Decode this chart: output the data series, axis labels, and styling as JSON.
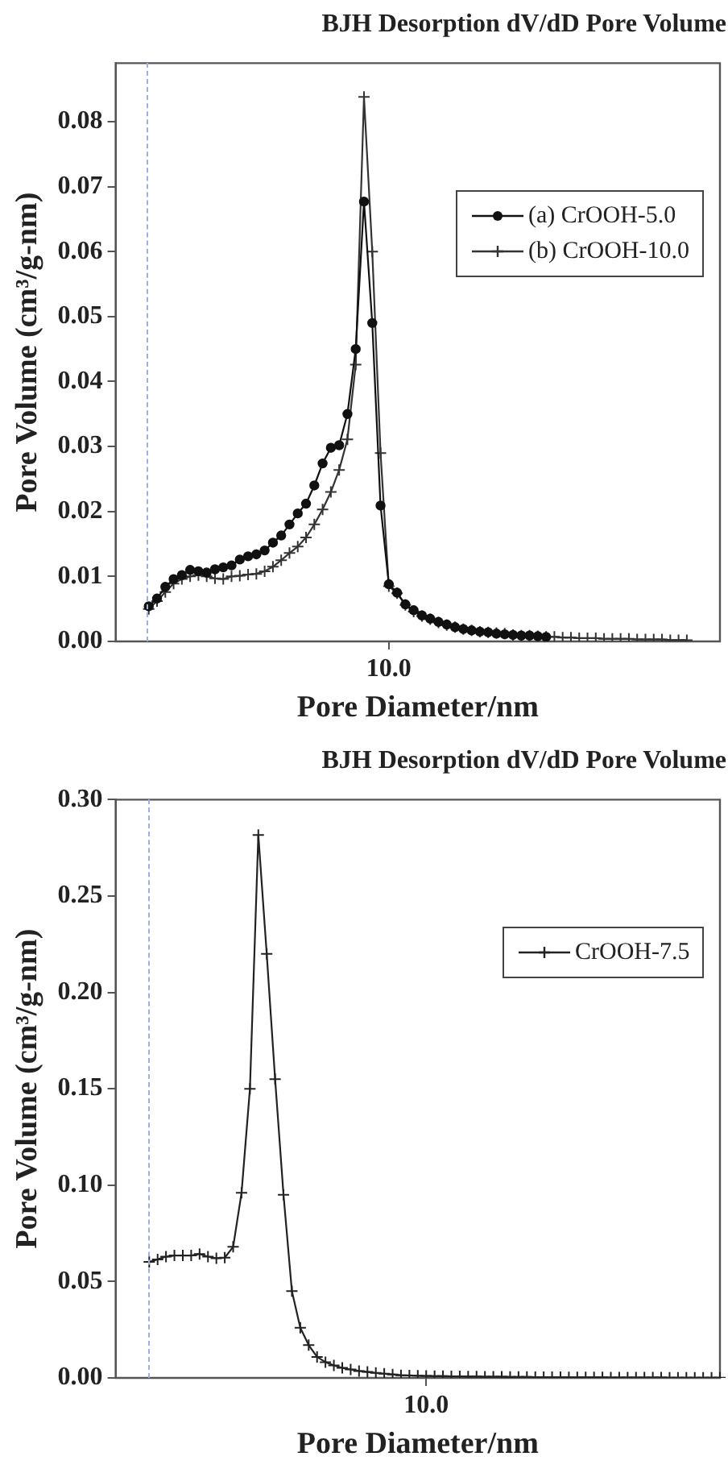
{
  "chart_data": [
    {
      "type": "line",
      "title": "BJH Desorption dV/dD Pore Volume",
      "xlabel": "Pore Diameter/nm",
      "ylabel": "Pore Volume (cm³/g-nm)",
      "categories": [
        null,
        null,
        null,
        null,
        null,
        null,
        null,
        null,
        null,
        null,
        null,
        null,
        null,
        null,
        null,
        null,
        null,
        null,
        null,
        null,
        null,
        null,
        null,
        null,
        null,
        null,
        null,
        null,
        null,
        null,
        null,
        null,
        null,
        "10.0",
        null,
        null,
        null,
        null,
        null,
        null,
        null,
        null,
        null,
        null,
        null,
        null,
        null,
        null,
        null,
        null,
        null,
        null,
        null,
        null,
        null,
        null,
        null,
        null,
        null,
        null,
        null,
        null,
        null,
        null,
        null,
        null,
        null,
        null,
        null,
        null,
        null,
        null,
        null,
        null
      ],
      "ylim": [
        0,
        0.089
      ],
      "yticks": [
        {
          "value": 0,
          "label": "0.00"
        },
        {
          "value": 0.01,
          "label": "0.01"
        },
        {
          "value": 0.02,
          "label": "0.02"
        },
        {
          "value": 0.03,
          "label": "0.03"
        },
        {
          "value": 0.04,
          "label": "0.04"
        },
        {
          "value": 0.05,
          "label": "0.05"
        },
        {
          "value": 0.06,
          "label": "0.06"
        },
        {
          "value": 0.07,
          "label": "0.07"
        },
        {
          "value": 0.08,
          "label": "0.08"
        }
      ],
      "legend": "top right",
      "line_style": "solid",
      "series": [
        {
          "name": "(a) CrOOH-5.0",
          "color": "#111111",
          "marker": "circle",
          "values": [
            null,
            null,
            null,
            null,
            0.0054,
            0.0066,
            0.0084,
            0.0096,
            0.0102,
            0.011,
            0.0108,
            0.0106,
            0.0111,
            0.0114,
            0.0117,
            0.0126,
            0.0131,
            0.0134,
            0.014,
            0.0152,
            0.0163,
            0.018,
            0.0197,
            0.0212,
            0.024,
            0.0274,
            0.0298,
            0.0302,
            0.035,
            0.045,
            0.0677,
            0.049,
            0.0209,
            0.0088,
            0.0075,
            0.0057,
            0.0048,
            0.004,
            0.0035,
            0.003,
            0.0026,
            0.0022,
            0.0019,
            0.0017,
            0.0015,
            0.0014,
            0.0012,
            0.0011,
            0.001,
            0.0009,
            0.0009,
            0.0008,
            0.0007,
            null,
            null,
            null,
            null,
            null,
            null,
            null,
            null,
            null,
            null,
            null,
            null,
            null,
            null,
            null,
            null,
            null,
            null,
            null,
            null,
            null
          ]
        },
        {
          "name": "(b) CrOOH-10.0",
          "color": "#333333",
          "marker": "cross",
          "values": [
            null,
            null,
            null,
            null,
            0.005,
            0.0062,
            0.0076,
            0.0089,
            0.0096,
            0.01,
            0.0102,
            0.01,
            0.0097,
            0.0096,
            0.01,
            0.0101,
            0.0103,
            0.0104,
            0.0108,
            0.0115,
            0.0125,
            0.0136,
            0.0146,
            0.016,
            0.018,
            0.0203,
            0.023,
            0.0264,
            0.0311,
            0.0426,
            0.0838,
            0.06,
            0.029,
            0.0085,
            0.0074,
            0.0056,
            0.0046,
            0.0039,
            0.0034,
            0.0029,
            0.0025,
            0.0022,
            0.0019,
            0.0017,
            0.0015,
            0.0014,
            0.0013,
            0.0012,
            0.001,
            0.0009,
            0.0009,
            0.0008,
            0.0007,
            0.0007,
            0.0006,
            0.0006,
            0.0005,
            0.0005,
            0.0005,
            0.0004,
            0.0004,
            0.0004,
            0.0004,
            0.0003,
            0.0003,
            0.0003,
            0.0003,
            0.0002,
            0.0002,
            0.0002,
            null,
            null,
            null,
            null
          ]
        }
      ]
    },
    {
      "type": "line",
      "title": "BJH Desorption dV/dD Pore Volume",
      "xlabel": "Pore Diameter/nm",
      "ylabel": "Pore Volume (cm³/g-nm)",
      "categories": [
        null,
        null,
        null,
        null,
        null,
        null,
        null,
        null,
        null,
        null,
        null,
        null,
        null,
        null,
        null,
        null,
        null,
        null,
        null,
        null,
        null,
        null,
        null,
        null,
        null,
        null,
        null,
        null,
        null,
        null,
        null,
        null,
        null,
        null,
        null,
        null,
        null,
        "10.0",
        null,
        null,
        null,
        null,
        null,
        null,
        null,
        null,
        null,
        null,
        null,
        null,
        null,
        null,
        null,
        null,
        null,
        null,
        null,
        null,
        null,
        null,
        null,
        null,
        null,
        null,
        null,
        null,
        null,
        null,
        null,
        null,
        null,
        null,
        null
      ],
      "ylim": [
        0,
        0.3
      ],
      "yticks": [
        {
          "value": 0,
          "label": "0.00"
        },
        {
          "value": 0.05,
          "label": "0.05"
        },
        {
          "value": 0.1,
          "label": "0.10"
        },
        {
          "value": 0.15,
          "label": "0.15"
        },
        {
          "value": 0.2,
          "label": "0.20"
        },
        {
          "value": 0.25,
          "label": "0.25"
        },
        {
          "value": 0.3,
          "label": "0.30"
        }
      ],
      "legend": "top right",
      "line_style": "solid",
      "marker": "cross",
      "series": [
        {
          "name": "CrOOH-7.5",
          "color": "#222222",
          "values": [
            null,
            null,
            null,
            null,
            0.0602,
            0.0615,
            0.0629,
            0.0635,
            0.0635,
            0.0635,
            0.0643,
            0.0629,
            0.0621,
            0.0624,
            0.068,
            0.096,
            0.15,
            0.2817,
            0.22,
            0.155,
            0.095,
            0.045,
            0.026,
            0.017,
            0.0109,
            0.0082,
            0.0065,
            0.0052,
            0.0044,
            0.0036,
            0.0031,
            0.0026,
            0.0022,
            0.0018,
            0.0014,
            0.0013,
            0.0011,
            0.001,
            0.0009,
            0.0009,
            0.0008,
            0.0008,
            0.0007,
            0.0007,
            0.0006,
            0.0006,
            0.0006,
            0.0005,
            0.0005,
            0.0005,
            0.0004,
            0.0004,
            0.0004,
            0.0004,
            0.0003,
            0.0003,
            0.0003,
            0.0003,
            0.0003,
            0.0002,
            0.0002,
            0.0002,
            0.0002,
            0.0002,
            0.0002,
            0.0002,
            0.0001,
            0.0001,
            0.0001,
            0.0001,
            0.0001,
            0.0001,
            0.0001
          ]
        }
      ]
    }
  ]
}
